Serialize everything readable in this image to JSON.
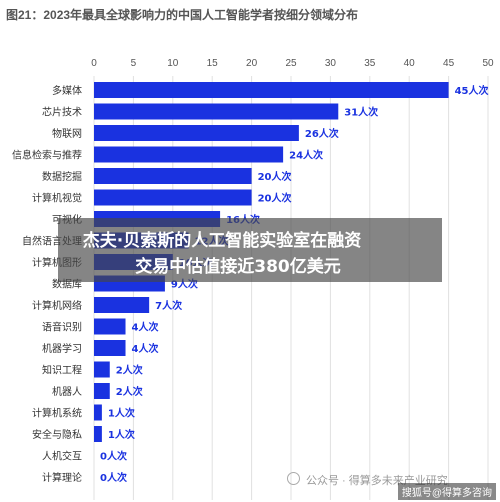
{
  "title": "图21：2023年最具全球影响力的中国人工智能学者按细分领域分布",
  "overlay": {
    "line1": "杰夫·贝索斯的人工智能实验室在融资",
    "line2": "交易中估值接近380亿美元"
  },
  "watermark": {
    "source": "公众号 · 得算多未来产业研究",
    "corner": "搜狐号@得算多咨询"
  },
  "colors": {
    "bar": "#1a32e0",
    "label": "#1a32e0",
    "axis_text": "#555555",
    "category_text": "#333333",
    "grid": "#e0e0e0"
  },
  "chart_data": {
    "type": "bar",
    "orientation": "horizontal",
    "xlim": [
      0,
      50
    ],
    "xticks": [
      0,
      5,
      10,
      15,
      20,
      25,
      30,
      35,
      40,
      45,
      50
    ],
    "xaxis_position": "top",
    "grid": true,
    "categories": [
      "多媒体",
      "芯片技术",
      "物联网",
      "信息检索与推荐",
      "数据挖掘",
      "计算机视觉",
      "可视化",
      "自然语言处理",
      "计算机图形",
      "数据库",
      "计算机网络",
      "语音识别",
      "机器学习",
      "知识工程",
      "机器人",
      "计算机系统",
      "安全与隐私",
      "人机交互",
      "计算理论"
    ],
    "values": [
      45,
      31,
      26,
      24,
      20,
      20,
      16,
      12,
      10,
      9,
      7,
      4,
      4,
      2,
      2,
      1,
      1,
      0,
      0
    ],
    "value_labels": [
      "45人次",
      "31人次",
      "26人次",
      "24人次",
      "20人次",
      "20人次",
      "16人次",
      "12人次",
      "10人次",
      "9人次",
      "7人次",
      "4人次",
      "4人次",
      "2人次",
      "2人次",
      "1人次",
      "1人次",
      "0人次",
      "0人次"
    ]
  }
}
